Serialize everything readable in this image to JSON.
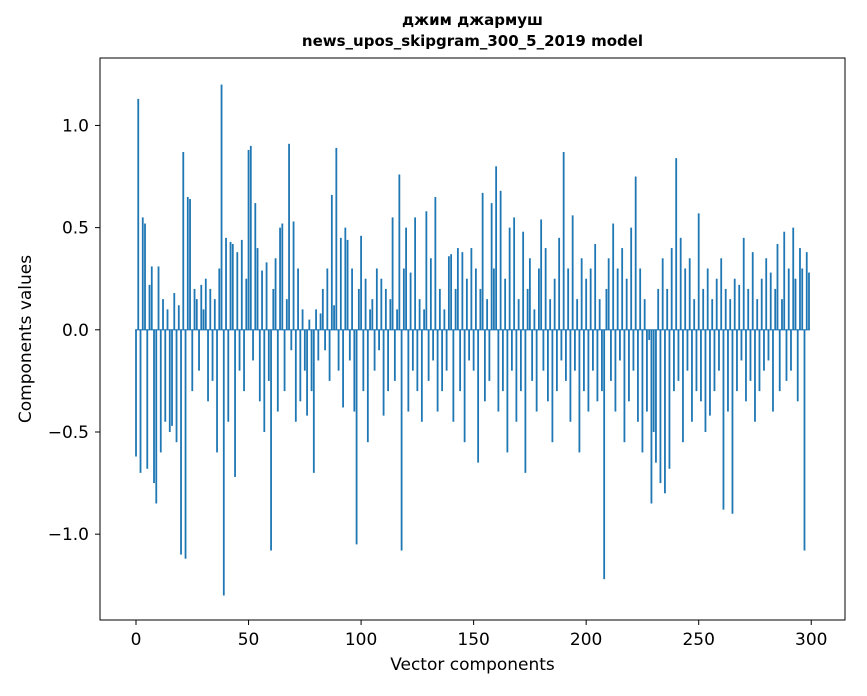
{
  "title": {
    "line1": "джим джармуш",
    "line2": "news_upos_skipgram_300_5_2019 model"
  },
  "chart_data": {
    "type": "bar",
    "title": "джим джармуш\nnews_upos_skipgram_300_5_2019 model",
    "xlabel": "Vector components",
    "ylabel": "Components values",
    "xlim": [
      -16,
      315
    ],
    "ylim": [
      -1.42,
      1.33
    ],
    "x_ticks": [
      0,
      50,
      100,
      150,
      200,
      250,
      300
    ],
    "y_ticks": [
      -1.0,
      -0.5,
      0.0,
      0.5,
      1.0
    ],
    "bar_color": "#1f77b4",
    "axis_color": "#000000",
    "grid": false,
    "legend": false,
    "n_components": 300,
    "values": [
      -0.62,
      1.13,
      -0.7,
      0.55,
      0.52,
      -0.68,
      0.22,
      0.31,
      -0.75,
      -0.85,
      0.31,
      -0.6,
      0.15,
      -0.45,
      0.1,
      -0.5,
      -0.47,
      0.18,
      -0.55,
      0.12,
      -1.1,
      0.87,
      -1.12,
      0.65,
      0.64,
      -0.3,
      0.2,
      0.15,
      -0.2,
      0.22,
      0.1,
      0.25,
      -0.35,
      0.2,
      -0.25,
      0.15,
      -0.6,
      0.3,
      1.2,
      -1.3,
      0.45,
      -0.45,
      0.43,
      0.42,
      -0.72,
      0.38,
      -0.2,
      0.44,
      -0.3,
      0.25,
      0.88,
      0.9,
      -0.15,
      0.62,
      0.4,
      -0.35,
      0.29,
      -0.5,
      0.33,
      -0.25,
      -1.08,
      0.2,
      0.35,
      -0.4,
      0.5,
      0.52,
      -0.3,
      0.15,
      0.91,
      -0.1,
      0.53,
      -0.45,
      0.3,
      -0.35,
      0.1,
      -0.2,
      -0.42,
      0.05,
      -0.3,
      -0.7,
      0.1,
      -0.15,
      0.08,
      0.2,
      -0.1,
      0.3,
      -0.25,
      0.66,
      0.12,
      0.89,
      -0.2,
      0.45,
      -0.38,
      0.5,
      0.44,
      -0.15,
      0.3,
      -0.4,
      -1.05,
      0.2,
      0.46,
      -0.3,
      0.25,
      -0.55,
      0.1,
      0.15,
      -0.2,
      0.3,
      -0.1,
      0.25,
      -0.42,
      0.2,
      -0.3,
      0.15,
      0.55,
      -0.25,
      0.1,
      0.76,
      -1.08,
      0.3,
      0.5,
      -0.4,
      0.28,
      -0.2,
      0.55,
      -0.3,
      0.15,
      -0.45,
      0.1,
      0.58,
      -0.25,
      0.35,
      -0.15,
      0.65,
      -0.4,
      0.2,
      -0.3,
      0.1,
      -0.2,
      0.36,
      0.37,
      -0.45,
      0.2,
      0.4,
      -0.3,
      0.38,
      -0.55,
      0.25,
      -0.15,
      0.4,
      -0.2,
      0.3,
      -0.65,
      0.2,
      0.67,
      -0.35,
      0.15,
      -0.25,
      0.62,
      0.3,
      0.8,
      -0.4,
      0.68,
      -0.3,
      0.25,
      -0.6,
      0.5,
      -0.2,
      0.55,
      -0.45,
      0.15,
      -0.3,
      0.48,
      -0.7,
      0.2,
      0.35,
      -0.25,
      0.1,
      -0.4,
      0.3,
      0.54,
      -0.2,
      0.4,
      -0.35,
      0.15,
      -0.55,
      0.25,
      -0.3,
      0.45,
      -0.15,
      0.87,
      -0.25,
      0.3,
      -0.45,
      0.56,
      -0.2,
      0.15,
      -0.6,
      0.35,
      -0.3,
      0.25,
      -0.4,
      0.3,
      -0.2,
      0.42,
      -0.35,
      0.15,
      -0.3,
      -1.22,
      0.2,
      0.35,
      -0.25,
      0.52,
      -0.4,
      0.3,
      -0.15,
      0.4,
      -0.55,
      0.25,
      -0.35,
      0.5,
      -0.2,
      0.75,
      -0.45,
      0.3,
      -0.6,
      0.15,
      -0.4,
      -0.05,
      -0.85,
      -0.5,
      -0.65,
      0.2,
      -0.75,
      0.35,
      -0.8,
      0.2,
      -0.68,
      0.4,
      -0.3,
      0.84,
      -0.25,
      0.45,
      -0.55,
      0.3,
      -0.2,
      0.35,
      -0.45,
      0.15,
      -0.3,
      0.57,
      -0.35,
      0.2,
      -0.5,
      0.3,
      -0.42,
      0.15,
      -0.3,
      0.25,
      -0.2,
      0.35,
      -0.88,
      0.2,
      -0.4,
      0.15,
      -0.9,
      0.25,
      -0.3,
      0.22,
      -0.15,
      0.45,
      -0.35,
      0.2,
      -0.25,
      0.38,
      -0.45,
      0.15,
      -0.3,
      0.25,
      -0.2,
      0.35,
      -0.15,
      0.28,
      -0.4,
      0.2,
      0.42,
      -0.3,
      0.15,
      0.48,
      -0.25,
      0.3,
      -0.2,
      0.5,
      0.25,
      -0.35,
      0.4,
      0.3,
      -1.08,
      0.38,
      0.28
    ]
  }
}
